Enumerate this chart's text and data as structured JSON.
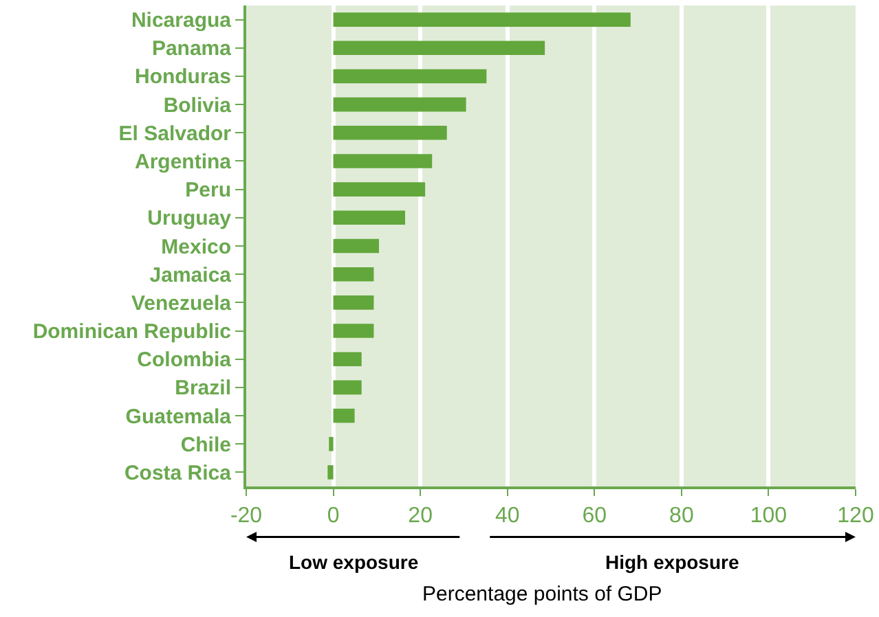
{
  "chart_data": {
    "type": "bar",
    "orientation": "horizontal",
    "xlabel": "Percentage points of GDP",
    "categories": [
      "Nicaragua",
      "Panama",
      "Honduras",
      "Bolivia",
      "El Salvador",
      "Argentina",
      "Peru",
      "Uruguay",
      "Mexico",
      "Jamaica",
      "Venezuela",
      "Dominican Republic",
      "Colombia",
      "Brazil",
      "Guatemala",
      "Chile",
      "Costa Rica"
    ],
    "values": [
      68.3,
      48.6,
      35.2,
      30.5,
      26.1,
      22.7,
      21.1,
      16.5,
      10.5,
      9.3,
      9.3,
      9.3,
      6.5,
      6.5,
      4.9,
      -1.0,
      -1.3
    ],
    "color": "#62a73b",
    "xlim": [
      -20,
      120
    ],
    "xticks": [
      -20,
      0,
      20,
      40,
      60,
      80,
      100,
      120
    ],
    "grid": "x",
    "annotations": [
      "Low exposure",
      "High exposure"
    ]
  }
}
